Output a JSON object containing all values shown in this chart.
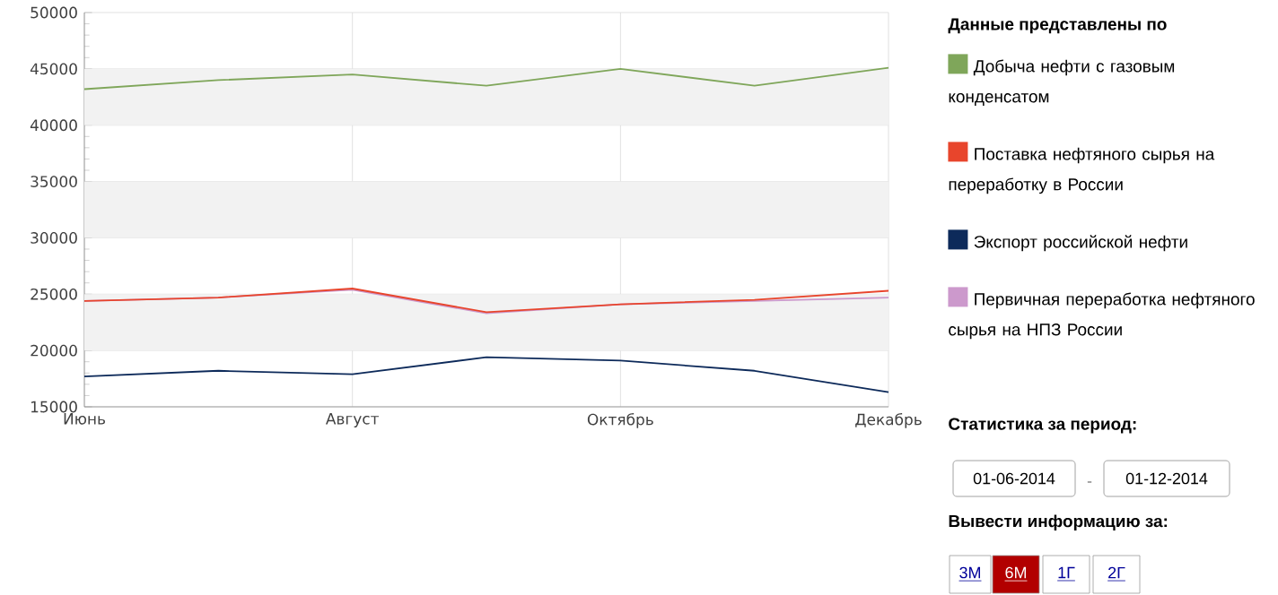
{
  "chart_data": {
    "type": "line",
    "legend_title": "Данные представлены по",
    "legend": "right",
    "grid": true,
    "categories": [
      "Июнь",
      null,
      "Август",
      null,
      "Октябрь",
      null,
      "Декабрь"
    ],
    "ylim": [
      15000,
      50000
    ],
    "yticks": [
      15000,
      20000,
      25000,
      30000,
      35000,
      40000,
      45000,
      50000
    ],
    "bands": [
      {
        "axis": "y",
        "from": 20000,
        "to": 25000,
        "color": "#f2f2f2"
      },
      {
        "axis": "y",
        "from": 30000,
        "to": 35000,
        "color": "#f2f2f2"
      },
      {
        "axis": "y",
        "from": 40000,
        "to": 45000,
        "color": "#f2f2f2"
      }
    ],
    "series": [
      {
        "name": "Добыча нефти с газовым конденсатом",
        "color": "#7fa65a",
        "values": [
          43200,
          44000,
          44500,
          43500,
          45000,
          43500,
          45100
        ]
      },
      {
        "name": "Поставка нефтяного сырья на переработку в России",
        "color": "#e8452c",
        "values": [
          24400,
          24700,
          25500,
          23400,
          24100,
          24500,
          25300
        ]
      },
      {
        "name": "Экспорт российской нефти",
        "color": "#0d2a5a",
        "values": [
          17700,
          18200,
          17900,
          19400,
          19100,
          18200,
          16300
        ]
      },
      {
        "name": "Первичная переработка нефтяного сырья на НПЗ России",
        "color": "#cc99cc",
        "values": [
          24400,
          24700,
          25400,
          23300,
          24100,
          24400,
          24700
        ]
      }
    ],
    "annotations": [
      "Статистика за период:",
      "01-06-2014",
      "-",
      "01-12-2014",
      "Вывести информацию за:",
      "3М",
      "6М",
      "1Г",
      "2Г"
    ]
  }
}
